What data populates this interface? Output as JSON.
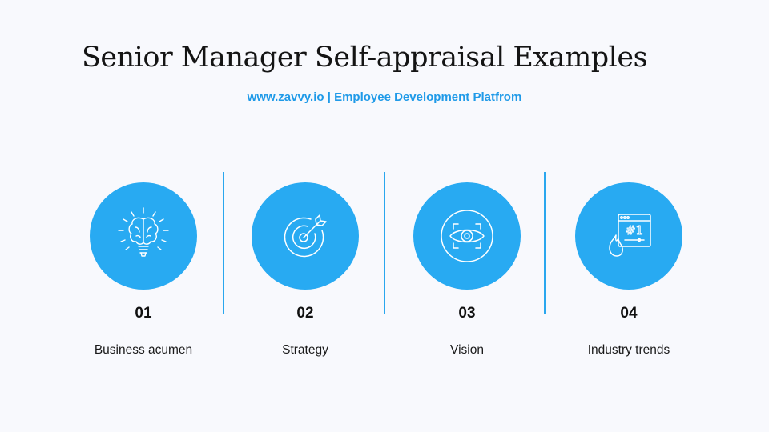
{
  "title": "Senior Manager Self-appraisal Examples",
  "subtitle": "www.zavvy.io | Employee Development Platfrom",
  "colors": {
    "accent": "#28aaf2",
    "subtitle": "#1f9ae8",
    "background": "#f8f9fd"
  },
  "items": [
    {
      "number": "01",
      "label": "Business acumen",
      "icon": "brain-lightbulb-icon"
    },
    {
      "number": "02",
      "label": "Strategy",
      "icon": "target-arrow-icon"
    },
    {
      "number": "03",
      "label": "Vision",
      "icon": "eye-scan-icon"
    },
    {
      "number": "04",
      "label": "Industry trends",
      "icon": "trending-number-one-icon",
      "icon_text": "#1"
    }
  ]
}
